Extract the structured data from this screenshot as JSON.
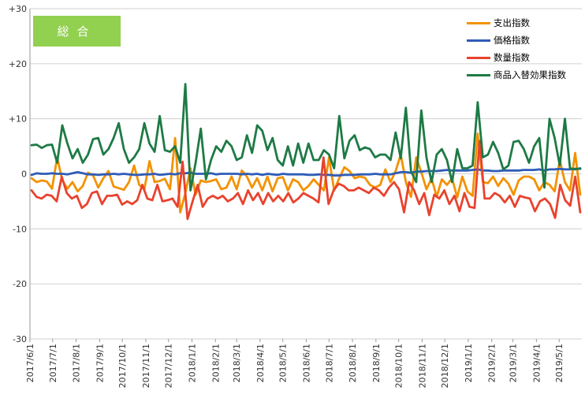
{
  "chart_data": {
    "type": "line",
    "title": "総合",
    "xlabel": "",
    "ylabel": "",
    "ylim": [
      -30,
      30
    ],
    "y_ticks": [
      "+30",
      "+20",
      "+10",
      "0",
      "-10",
      "-20",
      "-30"
    ],
    "y_tick_values": [
      30,
      20,
      10,
      0,
      -10,
      -20,
      -30
    ],
    "x_ticks": [
      "2017/6/1",
      "2017/7/1",
      "2017/8/1",
      "2017/9/1",
      "2017/10/1",
      "2017/11/1",
      "2017/12/1",
      "2018/1/1",
      "2018/2/1",
      "2018/3/1",
      "2018/4/1",
      "2018/5/1",
      "2018/6/1",
      "2018/7/1",
      "2018/8/1",
      "2018/9/1",
      "2018/10/1",
      "2018/11/1",
      "2018/12/1",
      "2019/1/1",
      "2019/2/1",
      "2019/3/1",
      "2019/4/1",
      "2019/5/1"
    ],
    "x_start": "2017-06-01",
    "x_end": "2019-05-31",
    "x_ticks_iso": [
      "2017-06-01",
      "2017-07-01",
      "2017-08-01",
      "2017-09-01",
      "2017-10-01",
      "2017-11-01",
      "2017-12-01",
      "2018-01-01",
      "2018-02-01",
      "2018-03-01",
      "2018-04-01",
      "2018-05-01",
      "2018-06-01",
      "2018-07-01",
      "2018-08-01",
      "2018-09-01",
      "2018-10-01",
      "2018-11-01",
      "2018-12-01",
      "2019-01-01",
      "2019-02-01",
      "2019-03-01",
      "2019-04-01",
      "2019-05-01"
    ],
    "grid": "horizontal",
    "legend_position": "top-right",
    "series": [
      {
        "name": "支出指数",
        "color": "#f39200",
        "values": [
          -0.8,
          -1.5,
          -1.2,
          -1.4,
          -2.7,
          3.0,
          -1.2,
          -2.7,
          -1.5,
          -3.2,
          -2.2,
          0.2,
          -0.3,
          -2.5,
          -0.8,
          0.5,
          -2.3,
          -2.6,
          -2.9,
          -1.5,
          1.5,
          -2.0,
          -2.8,
          2.3,
          -1.5,
          -1.3,
          -0.9,
          -2.8,
          6.5,
          -7.0,
          -3.5,
          1.0,
          -3.8,
          -1.2,
          -1.5,
          -1.3,
          -1.0,
          -2.8,
          -2.5,
          -0.5,
          -2.8,
          0.6,
          -0.5,
          -2.5,
          -0.8,
          -3.0,
          -0.5,
          -3.2,
          -0.8,
          -0.6,
          -3.0,
          -1.0,
          -1.5,
          -3.0,
          -2.2,
          -1.0,
          -2.0,
          -3.0,
          3.0,
          -3.0,
          -0.8,
          1.2,
          0.5,
          -0.8,
          -0.5,
          -0.7,
          -2.0,
          -2.5,
          -2.0,
          0.8,
          -1.5,
          0.5,
          3.5,
          -1.5,
          -4.2,
          3.0,
          0.3,
          -2.8,
          -0.8,
          -4.2,
          -1.0,
          -2.0,
          -0.8,
          -4.3,
          -0.5,
          -3.2,
          -4.0,
          7.3,
          -1.5,
          -1.7,
          -0.5,
          -2.2,
          -0.8,
          -1.8,
          -3.8,
          -1.2,
          -0.5,
          -0.5,
          -1.0,
          -3.0,
          -1.5,
          -2.0,
          -3.2,
          2.5,
          -1.5,
          -3.0,
          3.8,
          -3.8
        ]
      },
      {
        "name": "価格指数",
        "color": "#2e5cb8",
        "values": [
          -0.2,
          0.1,
          0.0,
          0.0,
          0.1,
          0.0,
          0.0,
          -0.1,
          0.1,
          0.3,
          0.1,
          -0.1,
          -0.1,
          -0.2,
          -0.1,
          -0.1,
          0.0,
          -0.1,
          0.0,
          -0.1,
          -0.2,
          -0.2,
          -0.1,
          -0.1,
          0.0,
          -0.2,
          -0.1,
          0.0,
          -0.1,
          0.1,
          0.1,
          0.2,
          0.0,
          0.0,
          0.0,
          0.1,
          -0.1,
          0.0,
          0.0,
          0.0,
          0.0,
          -0.1,
          0.0,
          -0.1,
          0.0,
          -0.2,
          0.0,
          -0.1,
          -0.2,
          0.0,
          -0.1,
          -0.1,
          -0.1,
          -0.1,
          -0.2,
          -0.2,
          -0.1,
          -0.2,
          -0.2,
          -0.3,
          -0.3,
          -0.2,
          -0.2,
          -0.2,
          -0.1,
          -0.1,
          -0.1,
          0.0,
          -0.1,
          -0.1,
          -0.1,
          0.1,
          0.3,
          0.3,
          0.2,
          0.4,
          0.4,
          0.5,
          0.5,
          0.5,
          0.6,
          0.7,
          0.6,
          0.6,
          0.6,
          0.6,
          0.7,
          0.8,
          0.6,
          0.6,
          0.5,
          0.5,
          0.6,
          0.6,
          0.6,
          0.6,
          0.7,
          0.7,
          0.7,
          0.8,
          0.6,
          0.8,
          0.8,
          0.9,
          0.8,
          0.8,
          0.9,
          0.9
        ]
      },
      {
        "name": "数量指数",
        "color": "#e8432e",
        "values": [
          -3.0,
          -4.2,
          -4.5,
          -3.8,
          -4.0,
          -5.0,
          -0.5,
          -3.5,
          -4.5,
          -4.0,
          -6.2,
          -5.5,
          -3.5,
          -3.2,
          -5.5,
          -4.0,
          -4.0,
          -3.8,
          -5.6,
          -5.0,
          -5.5,
          -4.8,
          -2.0,
          -4.5,
          -4.8,
          -2.0,
          -5.0,
          -4.8,
          -4.5,
          -6.0,
          2.2,
          -8.2,
          -5.0,
          -2.0,
          -6.0,
          -4.5,
          -4.0,
          -4.5,
          -4.0,
          -5.0,
          -4.5,
          -3.5,
          -5.5,
          -3.0,
          -4.8,
          -3.5,
          -5.5,
          -3.5,
          -5.0,
          -4.0,
          -5.0,
          -3.5,
          -5.2,
          -4.5,
          -3.5,
          -4.0,
          -4.5,
          -5.2,
          3.0,
          -5.5,
          -3.0,
          -1.8,
          -2.2,
          -3.0,
          -3.0,
          -2.5,
          -3.0,
          -3.5,
          -2.5,
          -3.0,
          -4.0,
          -2.5,
          -1.5,
          -2.8,
          -7.0,
          -1.5,
          -3.0,
          -5.5,
          -3.5,
          -7.5,
          -3.8,
          -4.5,
          -3.0,
          -5.5,
          -4.0,
          -6.8,
          -3.5,
          -6.0,
          -6.2,
          6.0,
          -4.5,
          -4.5,
          -3.5,
          -4.0,
          -5.2,
          -4.0,
          -6.0,
          -4.0,
          -4.3,
          -4.5,
          -6.8,
          -5.0,
          -4.5,
          -5.5,
          -8.0,
          -2.0,
          -4.8,
          -5.8,
          -0.5,
          -7.0
        ]
      },
      {
        "name": "商品入替効果指数",
        "color": "#1e7a45",
        "values": [
          5.2,
          5.3,
          4.7,
          5.2,
          5.3,
          2.0,
          8.8,
          5.5,
          2.8,
          4.5,
          2.0,
          3.5,
          6.3,
          6.5,
          3.5,
          4.5,
          6.5,
          9.2,
          4.5,
          2.0,
          3.0,
          4.5,
          9.2,
          5.5,
          4.0,
          10.5,
          4.3,
          4.0,
          5.0,
          2.0,
          16.3,
          -3.0,
          2.0,
          8.2,
          -1.0,
          2.5,
          5.0,
          4.0,
          6.0,
          5.0,
          2.5,
          3.0,
          7.0,
          3.8,
          8.8,
          7.8,
          4.3,
          6.5,
          2.5,
          1.5,
          5.0,
          1.5,
          5.5,
          2.0,
          5.5,
          2.5,
          2.5,
          4.3,
          3.5,
          1.0,
          10.5,
          2.8,
          6.0,
          7.0,
          4.3,
          4.8,
          4.5,
          3.0,
          3.5,
          3.5,
          2.5,
          7.5,
          2.8,
          12.0,
          0.5,
          -1.5,
          11.5,
          3.0,
          -1.5,
          3.5,
          4.5,
          2.5,
          -1.5,
          4.5,
          1.0,
          1.0,
          1.5,
          13.0,
          3.0,
          3.5,
          5.8,
          3.8,
          0.8,
          1.5,
          5.8,
          6.0,
          4.5,
          2.0,
          5.0,
          6.5,
          -2.5,
          10.0,
          6.5,
          1.5,
          10.0,
          1.0,
          0.8,
          1.0
        ]
      }
    ]
  }
}
